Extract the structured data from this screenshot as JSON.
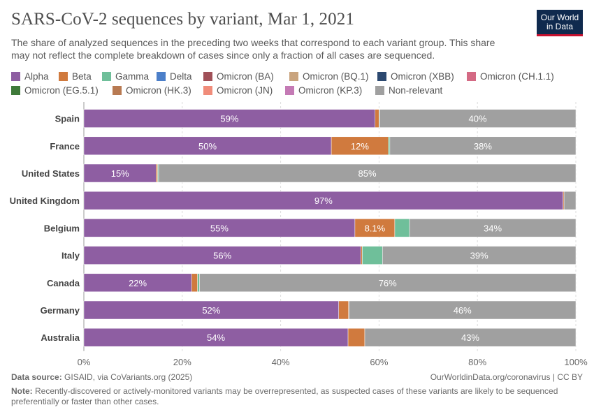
{
  "title": "SARS-CoV-2 sequences by variant, Mar 1, 2021",
  "subtitle": "The share of analyzed sequences in the preceding two weeks that correspond to each variant group. This share may not reflect the complete breakdown of cases since only a fraction of all cases are sequenced.",
  "logo": {
    "line1": "Our World",
    "line2": "in Data"
  },
  "footer": {
    "source_label": "Data source:",
    "source_text": "GISAID, via CoVariants.org (2025)",
    "url": "OurWorldinData.org/coronavirus | CC BY",
    "note_label": "Note:",
    "note_text": "Recently-discovered or actively-monitored variants may be overrepresented, as suspected cases of these variants are likely to be sequenced preferentially or faster than other cases."
  },
  "legend": [
    {
      "name": "Alpha",
      "color": "#8e5ea2"
    },
    {
      "name": "Beta",
      "color": "#d07a3e"
    },
    {
      "name": "Gamma",
      "color": "#6fbf9a"
    },
    {
      "name": "Delta",
      "color": "#4c7fc9"
    },
    {
      "name": "Omicron (BA)",
      "color": "#a05058"
    },
    {
      "name": "Omicron (BQ.1)",
      "color": "#c9a47e"
    },
    {
      "name": "Omicron (XBB)",
      "color": "#2c4970"
    },
    {
      "name": "Omicron (CH.1.1)",
      "color": "#d46a84"
    },
    {
      "name": "Omicron (EG.5.1)",
      "color": "#3f7a3a"
    },
    {
      "name": "Omicron (HK.3)",
      "color": "#b87a52"
    },
    {
      "name": "Omicron (JN)",
      "color": "#f08c7a"
    },
    {
      "name": "Omicron (KP.3)",
      "color": "#c47ab5"
    },
    {
      "name": "Non-relevant",
      "color": "#a0a0a0"
    }
  ],
  "chart_data": {
    "type": "bar",
    "orientation": "horizontal-stacked",
    "xlim": [
      0,
      100
    ],
    "x_ticks": [
      "0%",
      "20%",
      "40%",
      "60%",
      "80%",
      "100%"
    ],
    "grid": true,
    "categories": [
      "Spain",
      "France",
      "United States",
      "United Kingdom",
      "Belgium",
      "Italy",
      "Canada",
      "Germany",
      "Australia"
    ],
    "series": [
      {
        "name": "Alpha",
        "color": "#8e5ea2",
        "values": [
          59.2,
          50.3,
          14.7,
          97.4,
          55.1,
          56.3,
          21.9,
          51.8,
          53.7
        ]
      },
      {
        "name": "Beta",
        "color": "#d07a3e",
        "values": [
          0.8,
          11.6,
          0.3,
          0.2,
          8.1,
          0.3,
          1.2,
          2.0,
          3.4
        ]
      },
      {
        "name": "Gamma",
        "color": "#6fbf9a",
        "values": [
          0.1,
          0.3,
          0.2,
          0.0,
          3.0,
          4.1,
          0.4,
          0.1,
          0.0
        ]
      },
      {
        "name": "Non-relevant",
        "color": "#a0a0a0",
        "values": [
          39.9,
          37.8,
          84.8,
          2.4,
          33.8,
          39.3,
          76.5,
          46.1,
          42.9
        ]
      }
    ],
    "data_labels": [
      [
        "59%",
        "",
        "",
        "40%"
      ],
      [
        "50%",
        "12%",
        "",
        "38%"
      ],
      [
        "15%",
        "",
        "",
        "85%"
      ],
      [
        "97%",
        "",
        "",
        ""
      ],
      [
        "55%",
        "8.1%",
        "",
        "34%"
      ],
      [
        "56%",
        "",
        "",
        "39%"
      ],
      [
        "22%",
        "",
        "",
        "76%"
      ],
      [
        "52%",
        "",
        "",
        "46%"
      ],
      [
        "54%",
        "",
        "",
        "43%"
      ]
    ]
  }
}
